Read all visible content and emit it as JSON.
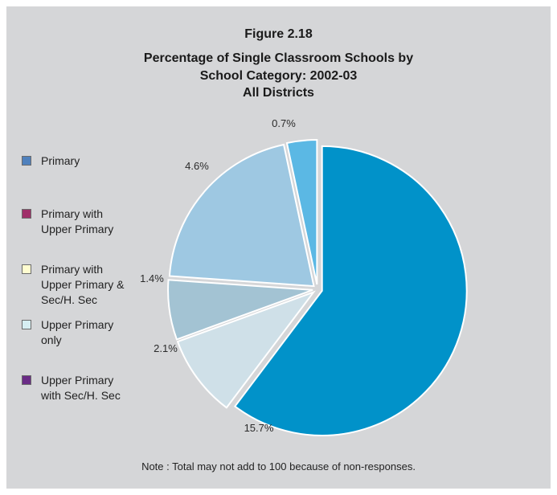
{
  "chart_data": {
    "type": "pie",
    "title_lines": [
      "Figure 2.18",
      "Percentage of Single Classroom Schools by",
      "School Category: 2002-03",
      "All Districts"
    ],
    "categories": [
      "Primary",
      "Primary with Upper Primary",
      "Primary with Upper Primary & Sec/H. Sec",
      "Upper Primary only",
      "Upper Primary with Sec/H. Sec"
    ],
    "legend_labels": [
      "Primary",
      "Primary with\nUpper Primary",
      "Primary with\nUpper Primary &\nSec/H. Sec",
      "Upper Primary\nonly",
      "Upper Primary\nwith Sec/H. Sec"
    ],
    "legend_colors": [
      "#4f81bd",
      "#a0306a",
      "#fffdd0",
      "#d6eef2",
      "#6a2c86"
    ],
    "legend_placement": "left",
    "slices": [
      {
        "label": "15.7%",
        "value": 15.7,
        "color": "#0192c9"
      },
      {
        "label": "2.1%",
        "value": 2.1,
        "color": "#cfe0e8"
      },
      {
        "label": "1.4%",
        "value": 1.4,
        "color": "#a3c3d3"
      },
      {
        "label": "4.6%",
        "value": 4.6,
        "color": "#9ec8e2"
      },
      {
        "label": "0.7%",
        "value": 0.7,
        "color": "#5bb8e4"
      }
    ],
    "note": "Note : Total may not add to 100 because of non-responses."
  }
}
